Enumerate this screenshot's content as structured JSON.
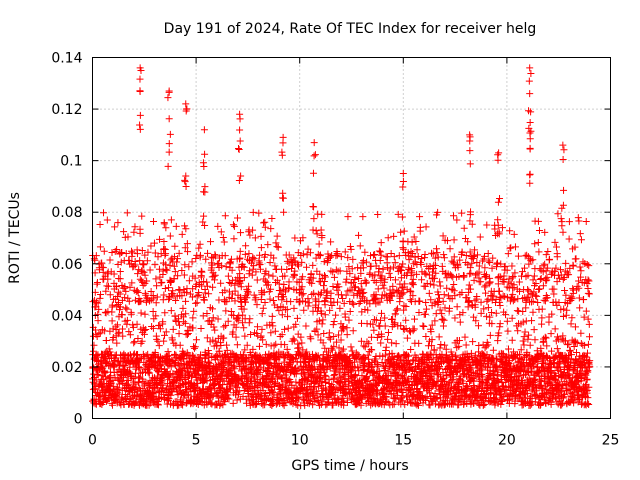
{
  "chart_data": {
    "type": "scatter",
    "title": "Day 191 of 2024, Rate Of TEC Index for receiver helg",
    "xlabel": "GPS time / hours",
    "ylabel": "ROTI / TECUs",
    "xlim": [
      0,
      25
    ],
    "ylim": [
      0,
      0.14
    ],
    "x_ticks": [
      0,
      5,
      10,
      15,
      20,
      25
    ],
    "x_tick_labels": [
      "0",
      "5",
      "10",
      "15",
      "20",
      "25"
    ],
    "y_ticks": [
      0,
      0.02,
      0.04,
      0.06,
      0.08,
      0.1,
      0.12,
      0.14
    ],
    "y_tick_labels": [
      "0",
      "0.02",
      "0.04",
      "0.06",
      "0.08",
      "0.1",
      "0.12",
      "0.14"
    ],
    "grid": true,
    "marker": "+",
    "series_color": "#ff0000",
    "series": [
      {
        "name": "ROTI",
        "data_span_hours": [
          0,
          24
        ],
        "dense_band_range": [
          0.005,
          0.05
        ],
        "notable_peaks": [
          {
            "x": 2.3,
            "y": 0.136
          },
          {
            "x": 3.7,
            "y": 0.127
          },
          {
            "x": 4.5,
            "y": 0.122
          },
          {
            "x": 5.4,
            "y": 0.112
          },
          {
            "x": 7.1,
            "y": 0.118
          },
          {
            "x": 9.2,
            "y": 0.109
          },
          {
            "x": 10.7,
            "y": 0.107
          },
          {
            "x": 15.0,
            "y": 0.095
          },
          {
            "x": 18.2,
            "y": 0.11
          },
          {
            "x": 19.6,
            "y": 0.103
          },
          {
            "x": 21.1,
            "y": 0.136
          },
          {
            "x": 21.1,
            "y": 0.126
          },
          {
            "x": 22.7,
            "y": 0.106
          }
        ]
      }
    ]
  }
}
